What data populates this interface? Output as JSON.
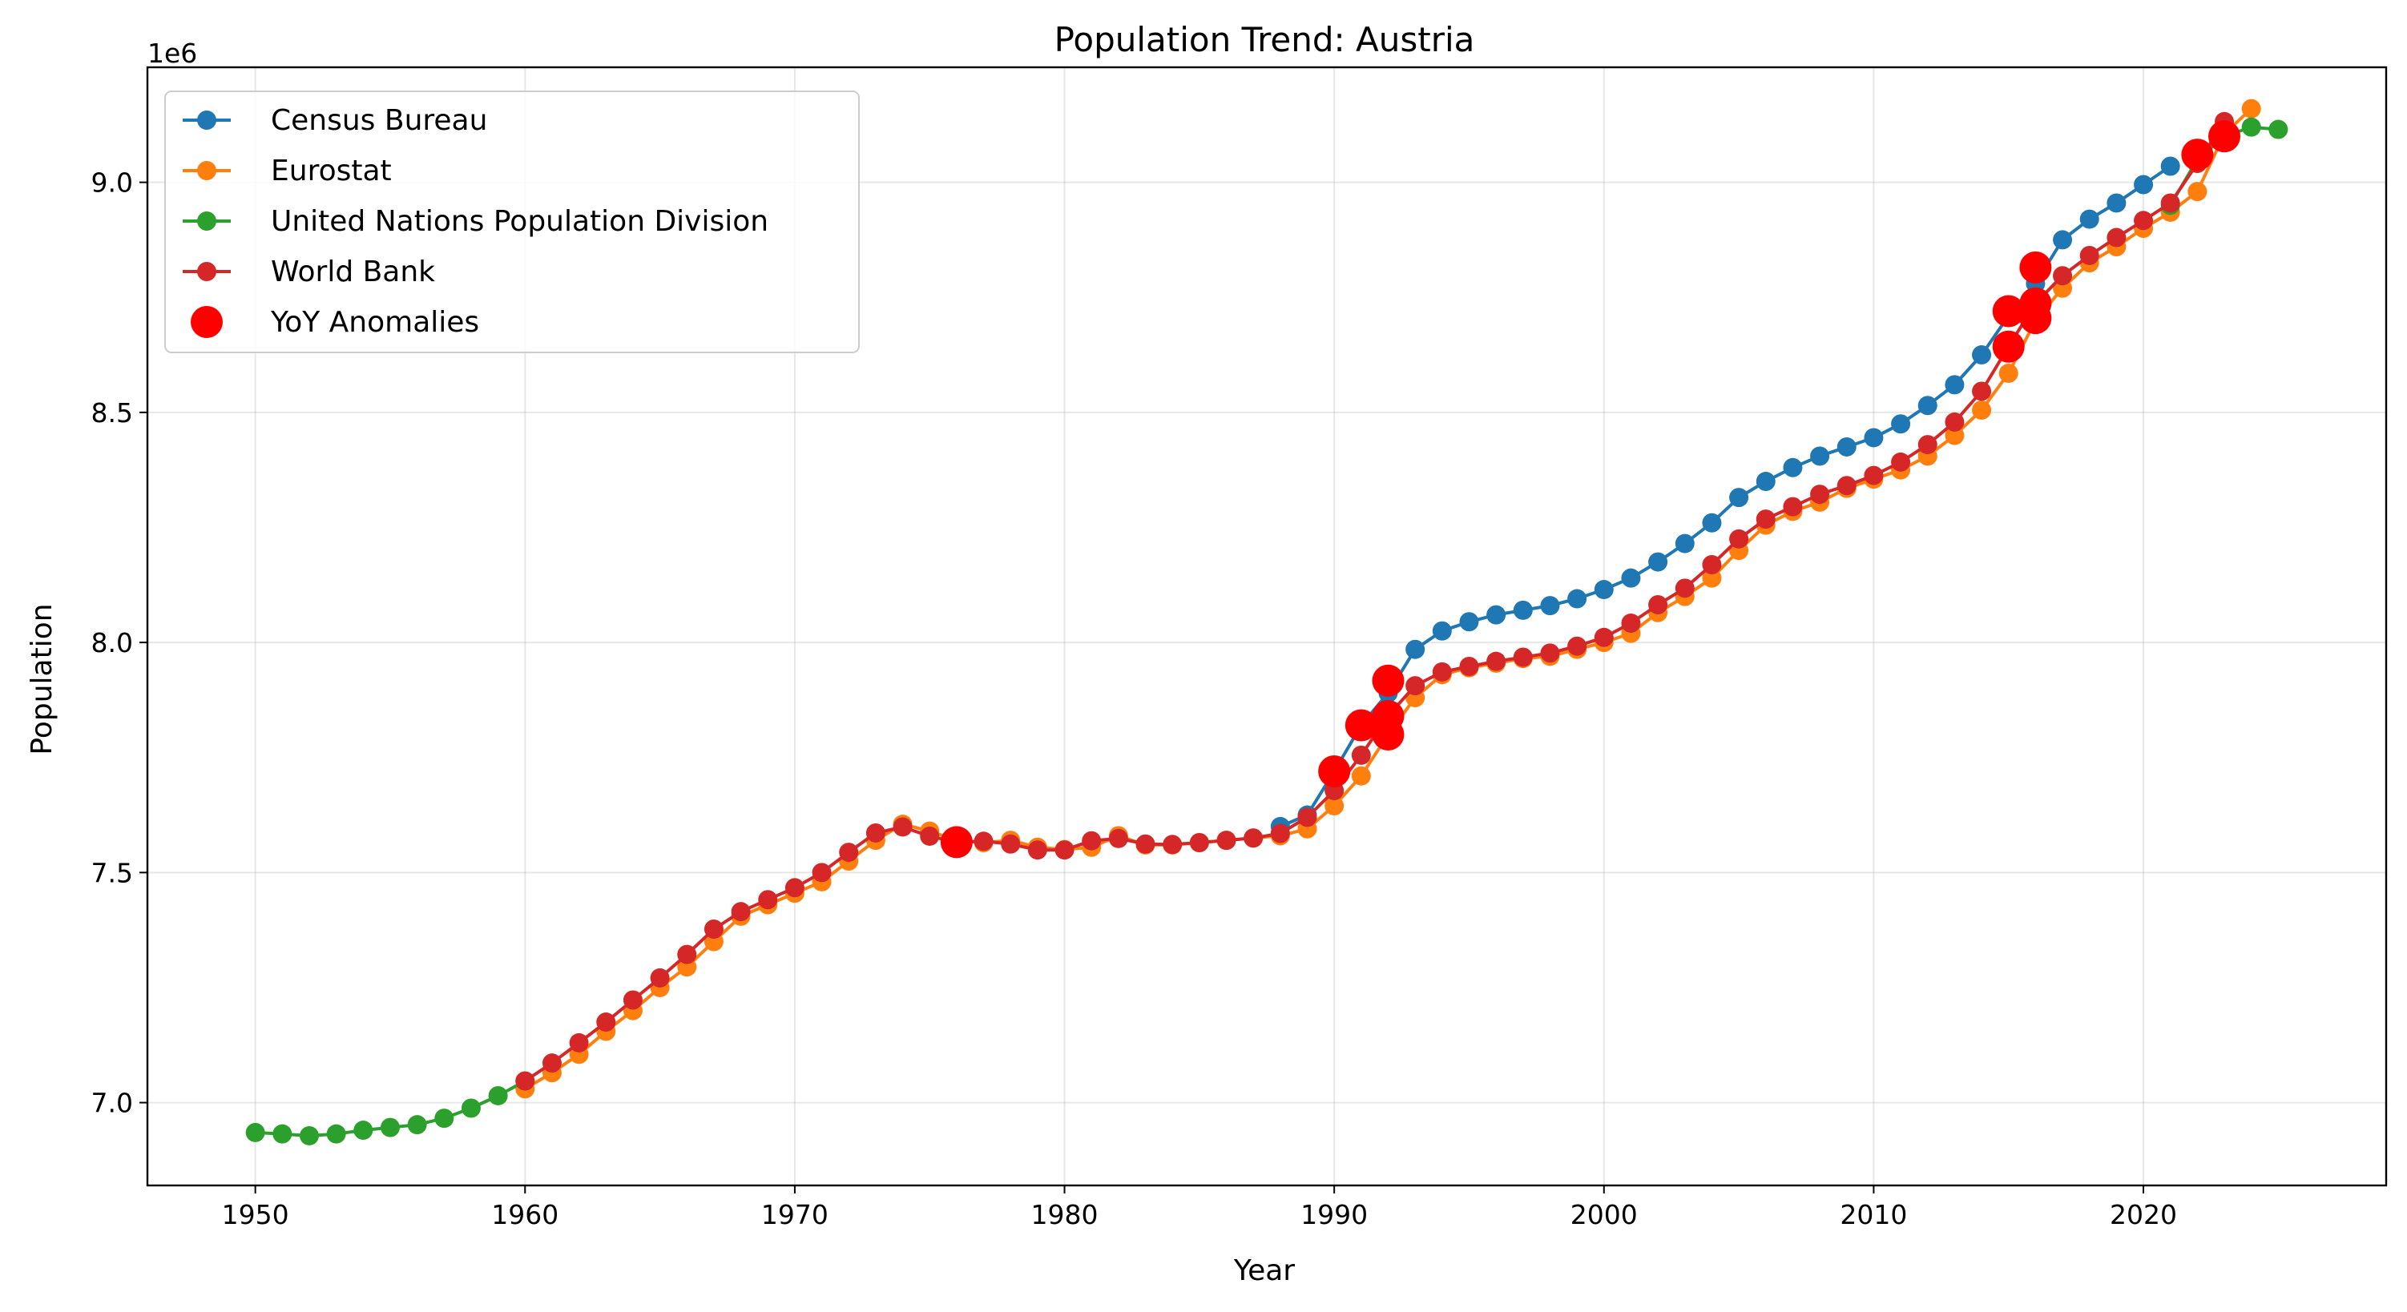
{
  "chart_data": {
    "type": "line",
    "title": "Population Trend: Austria",
    "xlabel": "Year",
    "ylabel": "Population",
    "y_offset_label": "1e6",
    "xlim": [
      1946,
      2029
    ],
    "ylim": [
      6820000,
      9250000
    ],
    "x_ticks": [
      1950,
      1960,
      1970,
      1980,
      1990,
      2000,
      2010,
      2020
    ],
    "y_ticks": [
      7000000,
      7500000,
      8000000,
      8500000,
      9000000
    ],
    "y_tick_labels": [
      "7.0",
      "7.5",
      "8.0",
      "8.5",
      "9.0"
    ],
    "grid": true,
    "legend_position": "upper-left",
    "series": [
      {
        "name": "Census Bureau",
        "color": "#1f77b4",
        "x": [
          1988,
          1989,
          1990,
          1991,
          1992,
          1993,
          1994,
          1995,
          1996,
          1997,
          1998,
          1999,
          2000,
          2001,
          2002,
          2003,
          2004,
          2005,
          2006,
          2007,
          2008,
          2009,
          2010,
          2011,
          2012,
          2013,
          2014,
          2015,
          2016,
          2017,
          2018,
          2019,
          2020,
          2021
        ],
        "y": [
          7600000,
          7625000,
          7720000,
          7820000,
          7890000,
          7985000,
          8025000,
          8045000,
          8060000,
          8070000,
          8080000,
          8095000,
          8115000,
          8140000,
          8175000,
          8215000,
          8260000,
          8315000,
          8350000,
          8380000,
          8405000,
          8425000,
          8445000,
          8475000,
          8515000,
          8560000,
          8625000,
          8710000,
          8780000,
          8875000,
          8920000,
          8955000,
          8995000,
          9035000
        ]
      },
      {
        "name": "Eurostat",
        "color": "#ff7f0e",
        "x": [
          1960,
          1961,
          1962,
          1963,
          1964,
          1965,
          1966,
          1967,
          1968,
          1969,
          1970,
          1971,
          1972,
          1973,
          1974,
          1975,
          1976,
          1977,
          1978,
          1979,
          1980,
          1981,
          1982,
          1983,
          1984,
          1985,
          1986,
          1987,
          1988,
          1989,
          1990,
          1991,
          1992,
          1993,
          1994,
          1995,
          1996,
          1997,
          1998,
          1999,
          2000,
          2001,
          2002,
          2003,
          2004,
          2005,
          2006,
          2007,
          2008,
          2009,
          2010,
          2011,
          2012,
          2013,
          2014,
          2015,
          2016,
          2017,
          2018,
          2019,
          2020,
          2021,
          2022,
          2023,
          2024
        ],
        "y": [
          7030000,
          7065000,
          7105000,
          7155000,
          7200000,
          7250000,
          7295000,
          7350000,
          7405000,
          7430000,
          7455000,
          7480000,
          7525000,
          7570000,
          7605000,
          7590000,
          7570000,
          7565000,
          7570000,
          7555000,
          7550000,
          7555000,
          7580000,
          7560000,
          7560000,
          7565000,
          7570000,
          7575000,
          7580000,
          7595000,
          7645000,
          7710000,
          7800000,
          7880000,
          7930000,
          7945000,
          7955000,
          7965000,
          7970000,
          7985000,
          8000000,
          8020000,
          8065000,
          8100000,
          8140000,
          8200000,
          8255000,
          8285000,
          8305000,
          8335000,
          8355000,
          8375000,
          8405000,
          8450000,
          8505000,
          8585000,
          8700000,
          8770000,
          8825000,
          8860000,
          8900000,
          8935000,
          8980000,
          9105000,
          9160000
        ]
      },
      {
        "name": "United Nations Population Division",
        "color": "#2ca02c",
        "x": [
          1950,
          1951,
          1952,
          1953,
          1954,
          1955,
          1956,
          1957,
          1958,
          1959,
          1960,
          2021,
          2022,
          2023,
          2024,
          2025
        ],
        "y": [
          6935000,
          6932000,
          6928000,
          6932000,
          6940000,
          6946000,
          6952000,
          6966000,
          6988000,
          7015000,
          7047000,
          8950000,
          9050000,
          9100000,
          9120000,
          9115000
        ]
      },
      {
        "name": "World Bank",
        "color": "#d62728",
        "x": [
          1960,
          1961,
          1962,
          1963,
          1964,
          1965,
          1966,
          1967,
          1968,
          1969,
          1970,
          1971,
          1972,
          1973,
          1974,
          1975,
          1976,
          1977,
          1978,
          1979,
          1980,
          1981,
          1982,
          1983,
          1984,
          1985,
          1986,
          1987,
          1988,
          1989,
          1990,
          1991,
          1992,
          1993,
          1994,
          1995,
          1996,
          1997,
          1998,
          1999,
          2000,
          2001,
          2002,
          2003,
          2004,
          2005,
          2006,
          2007,
          2008,
          2009,
          2010,
          2011,
          2012,
          2013,
          2014,
          2015,
          2016,
          2017,
          2018,
          2019,
          2020,
          2021,
          2022,
          2023
        ],
        "y": [
          7047000,
          7086000,
          7130000,
          7175000,
          7223000,
          7271000,
          7322000,
          7377000,
          7415000,
          7441000,
          7467000,
          7500000,
          7544000,
          7586000,
          7599000,
          7579000,
          7566000,
          7568000,
          7562000,
          7549000,
          7549000,
          7569000,
          7574000,
          7562000,
          7561000,
          7565000,
          7570000,
          7575000,
          7585000,
          7620000,
          7678000,
          7755000,
          7841000,
          7906000,
          7936000,
          7948000,
          7959000,
          7968000,
          7977000,
          7992000,
          8011000,
          8042000,
          8082000,
          8118000,
          8169000,
          8225000,
          8268000,
          8295000,
          8322000,
          8341000,
          8363000,
          8392000,
          8430000,
          8479000,
          8546000,
          8643000,
          8737000,
          8797000,
          8841000,
          8880000,
          8917000,
          8955000,
          9041000,
          9132000
        ]
      }
    ],
    "anomalies": {
      "name": "YoY Anomalies",
      "color": "#ff0000",
      "points": [
        {
          "x": 1976,
          "y": 7566000
        },
        {
          "x": 1990,
          "y": 7720000
        },
        {
          "x": 1991,
          "y": 7820000
        },
        {
          "x": 1992,
          "y": 7800000
        },
        {
          "x": 1992,
          "y": 7840000
        },
        {
          "x": 1992,
          "y": 7917000
        },
        {
          "x": 2015,
          "y": 8643000
        },
        {
          "x": 2015,
          "y": 8720000
        },
        {
          "x": 2016,
          "y": 8705000
        },
        {
          "x": 2016,
          "y": 8737000
        },
        {
          "x": 2016,
          "y": 8815000
        },
        {
          "x": 2022,
          "y": 9060000
        },
        {
          "x": 2023,
          "y": 9100000
        }
      ]
    }
  }
}
